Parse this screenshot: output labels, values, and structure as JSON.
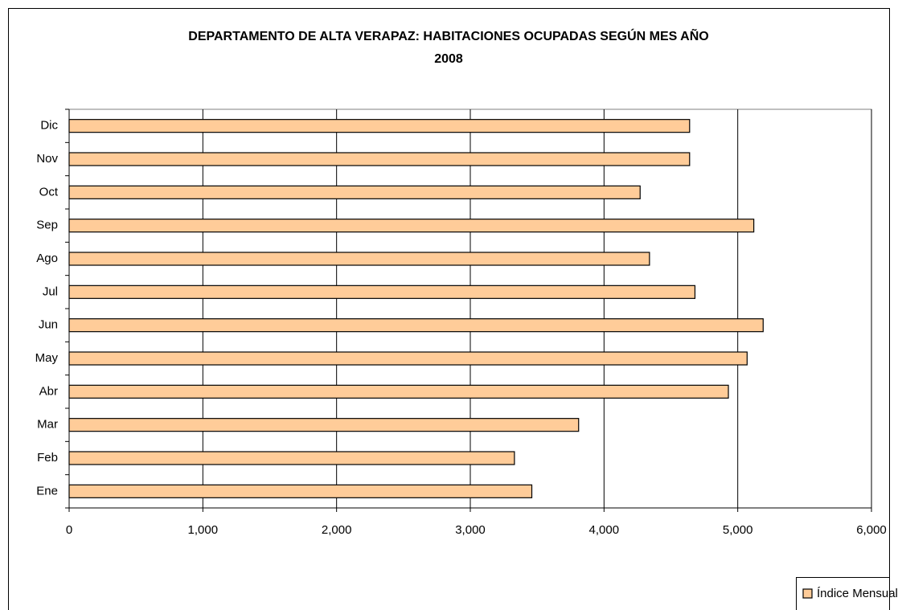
{
  "chart_data": {
    "type": "bar",
    "orientation": "horizontal",
    "title": [
      "DEPARTAMENTO DE ALTA VERAPAZ: HABITACIONES OCUPADAS SEGÚN MES AÑO",
      "2008"
    ],
    "categories": [
      "Ene",
      "Feb",
      "Mar",
      "Abr",
      "May",
      "Jun",
      "Jul",
      "Ago",
      "Sep",
      "Oct",
      "Nov",
      "Dic"
    ],
    "series": [
      {
        "name": "Índice Mensual",
        "color": "#FFCC99",
        "values": [
          3460,
          3330,
          3810,
          4930,
          5070,
          5190,
          4680,
          4340,
          5120,
          4270,
          4640,
          4640
        ]
      }
    ],
    "xlim": [
      0,
      6000
    ],
    "xticks": [
      0,
      {
        "value": 1000,
        "label": "1,000"
      },
      {
        "value": 2000,
        "label": "2,000"
      },
      {
        "value": 3000,
        "label": "3,000"
      },
      {
        "value": 4000,
        "label": "4,000"
      },
      {
        "value": 5000,
        "label": "5,000"
      },
      {
        "value": 6000,
        "label": "6,000"
      }
    ],
    "grid": true,
    "legend": "bottom-right"
  }
}
